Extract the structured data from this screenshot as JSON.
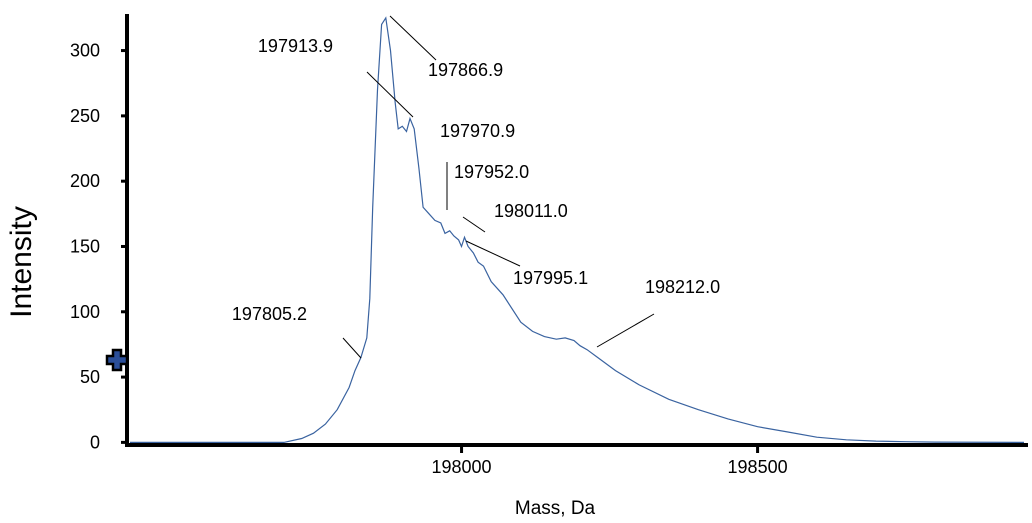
{
  "chart_data": {
    "type": "line",
    "title": "",
    "xlabel": "Mass, Da",
    "ylabel": "Intensity",
    "xlim": [
      197440,
      198950
    ],
    "ylim": [
      -2,
      328
    ],
    "x_ticks": [
      198000,
      198500
    ],
    "y_ticks": [
      0,
      50,
      100,
      150,
      200,
      250,
      300
    ],
    "grid": false,
    "line_color": "#3a63a0",
    "series": [
      {
        "x": [
          197440,
          197700,
          197730,
          197750,
          197770,
          197790,
          197810,
          197820,
          197830,
          197840,
          197845,
          197850,
          197858,
          197865,
          197872,
          197880,
          197888,
          197893,
          197900,
          197907,
          197913,
          197920,
          197928,
          197935,
          197945,
          197955,
          197965,
          197972,
          197980,
          197987,
          197995,
          198000,
          198005,
          198011,
          198020,
          198028,
          198037,
          198050,
          198070,
          198100,
          198120,
          198140,
          198160,
          198175,
          198190,
          198200,
          198212,
          198230,
          198260,
          198300,
          198350,
          198400,
          198450,
          198500,
          198550,
          198600,
          198650,
          198700,
          198750,
          198800,
          198950
        ],
        "y": [
          0,
          0,
          3,
          7,
          14,
          25,
          42,
          55,
          65,
          80,
          110,
          180,
          270,
          320,
          325,
          300,
          260,
          240,
          242,
          238,
          248,
          240,
          210,
          180,
          175,
          170,
          168,
          160,
          162,
          158,
          155,
          150,
          157,
          150,
          145,
          138,
          135,
          123,
          113,
          92,
          85,
          81,
          79,
          80,
          78,
          74,
          71,
          65,
          55,
          44,
          33,
          25,
          18,
          12,
          8,
          4,
          2,
          1,
          0.5,
          0.2,
          0
        ]
      }
    ],
    "annotations": [
      {
        "label": "197866.9",
        "x": 197866.9,
        "y": 325
      },
      {
        "label": "197913.9",
        "x": 197913.9,
        "y": 248
      },
      {
        "label": "197952.0",
        "x": 197952.0,
        "y": 172
      },
      {
        "label": "197970.9",
        "x": 197970.9,
        "y": 165
      },
      {
        "label": "198011.0",
        "x": 198011.0,
        "y": 152
      },
      {
        "label": "197995.1",
        "x": 197995.1,
        "y": 155
      },
      {
        "label": "198212.0",
        "x": 198212.0,
        "y": 71
      },
      {
        "label": "197805.2",
        "x": 197805.2,
        "y": 65
      }
    ]
  }
}
